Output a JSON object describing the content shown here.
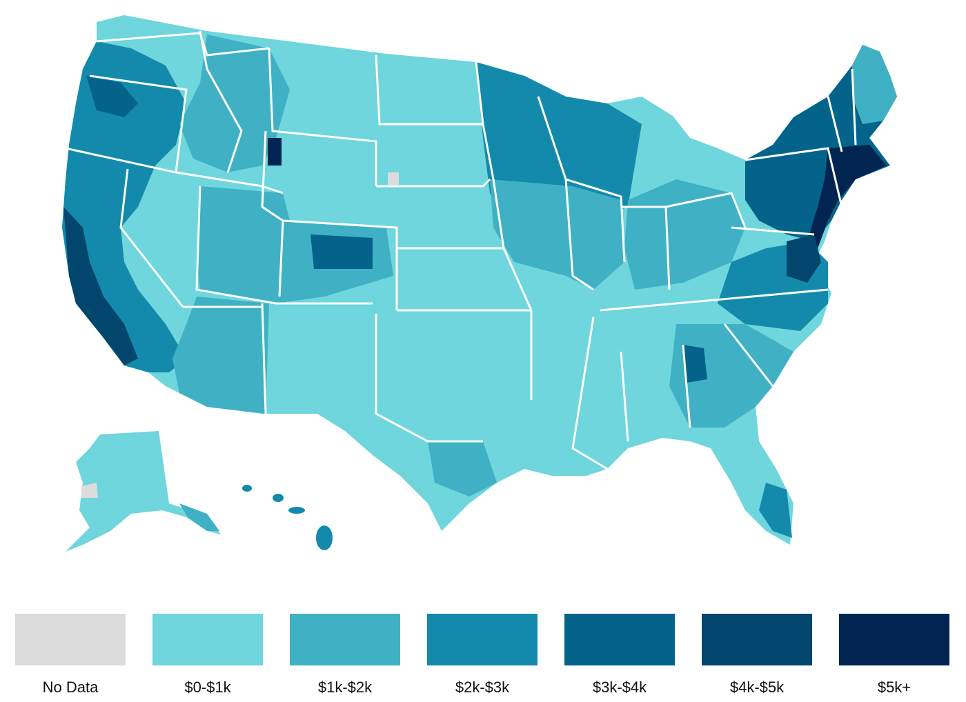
{
  "map": {
    "palette": {
      "no_data": "#dcdcdc",
      "bin1": "#6ed6dc",
      "bin2": "#40b1c4",
      "bin3": "#138aab",
      "bin4": "#03638b",
      "bin5": "#02466d",
      "bin6": "#012550",
      "border": "#ffffff"
    },
    "regions": [
      {
        "name": "west-coast-band",
        "bin": "bin3"
      },
      {
        "name": "interior-west",
        "bin": "bin1"
      },
      {
        "name": "mountain-west",
        "bin": "bin2"
      },
      {
        "name": "great-plains",
        "bin": "bin1"
      },
      {
        "name": "upper-midwest",
        "bin": "bin3"
      },
      {
        "name": "south-central",
        "bin": "bin1"
      },
      {
        "name": "southeast",
        "bin": "bin2"
      },
      {
        "name": "northeast",
        "bin": "bin4"
      },
      {
        "name": "mid-atlantic-corridor",
        "bin": "bin6"
      },
      {
        "name": "new-england",
        "bin": "bin5"
      },
      {
        "name": "alaska",
        "bin": "bin1"
      },
      {
        "name": "hawaii",
        "bin": "bin3"
      }
    ]
  },
  "legend": {
    "items": [
      {
        "label": "No Data",
        "color": "#dcdcdc"
      },
      {
        "label": "$0-$1k",
        "color": "#6ed6dc"
      },
      {
        "label": "$1k-$2k",
        "color": "#40b1c4"
      },
      {
        "label": "$2k-$3k",
        "color": "#138aab"
      },
      {
        "label": "$3k-$4k",
        "color": "#03638b"
      },
      {
        "label": "$4k-$5k",
        "color": "#02466d"
      },
      {
        "label": "$5k+",
        "color": "#012550"
      }
    ]
  }
}
